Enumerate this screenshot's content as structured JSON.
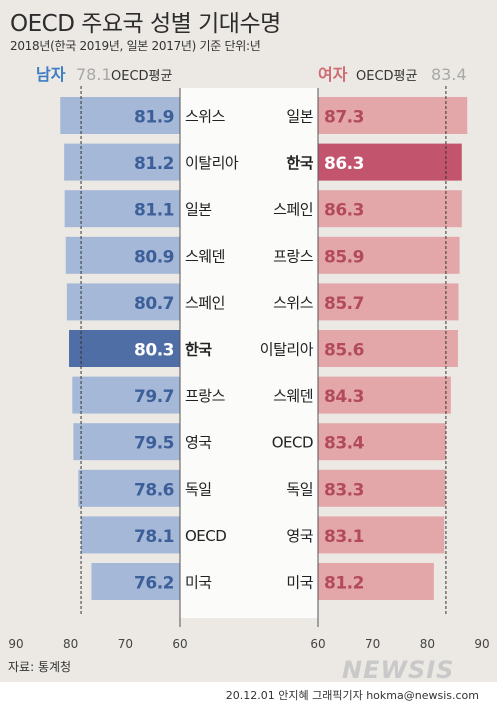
{
  "header": {
    "title": "OECD 주요국 성별 기대수명",
    "subtitle": "2018년(한국 2019년, 일본 2017년) 기준 단위:년"
  },
  "colors": {
    "male_bar": "#a5b8d7",
    "male_highlight": "#4f6ea5",
    "female_bar": "#e3a7aa",
    "female_highlight": "#c3546d",
    "male_text": "#3e7dc4",
    "female_text": "#d06b72"
  },
  "chart_data": [
    {
      "type": "bar",
      "orientation": "horizontal",
      "legend_label": "남자",
      "avg_value_label": "78.1",
      "avg_label": "OECD평균",
      "oecd_average": 78.1,
      "highlight": "한국",
      "categories": [
        "스위스",
        "이탈리아",
        "일본",
        "스웨덴",
        "스페인",
        "한국",
        "프랑스",
        "영국",
        "독일",
        "OECD",
        "미국"
      ],
      "values": [
        81.9,
        81.2,
        81.1,
        80.9,
        80.7,
        80.3,
        79.7,
        79.5,
        78.6,
        78.1,
        76.2
      ],
      "value_labels": [
        "81.9",
        "81.2",
        "81.1",
        "80.9",
        "80.7",
        "80.3",
        "79.7",
        "79.5",
        "78.6",
        "78.1",
        "76.2"
      ],
      "xlim": [
        60,
        90
      ],
      "ticks": [
        "90",
        "80",
        "70",
        "60"
      ]
    },
    {
      "type": "bar",
      "orientation": "horizontal",
      "legend_label": "여자",
      "avg_value_label": "83.4",
      "avg_label": "OECD평균",
      "oecd_average": 83.4,
      "highlight": "한국",
      "categories": [
        "일본",
        "한국",
        "스페인",
        "프랑스",
        "스위스",
        "이탈리아",
        "스웨덴",
        "OECD",
        "독일",
        "영국",
        "미국"
      ],
      "values": [
        87.3,
        86.3,
        86.3,
        85.9,
        85.7,
        85.6,
        84.3,
        83.4,
        83.3,
        83.1,
        81.2
      ],
      "value_labels": [
        "87.3",
        "86.3",
        "86.3",
        "85.9",
        "85.7",
        "85.6",
        "84.3",
        "83.4",
        "83.3",
        "83.1",
        "81.2"
      ],
      "xlim": [
        60,
        90
      ],
      "ticks": [
        "60",
        "70",
        "80",
        "90"
      ]
    }
  ],
  "footer": {
    "source": "자료: 통계청",
    "watermark": "NEWSIS",
    "credit": "20.12.01 안지혜 그래픽기자 hokma@newsis.com"
  }
}
